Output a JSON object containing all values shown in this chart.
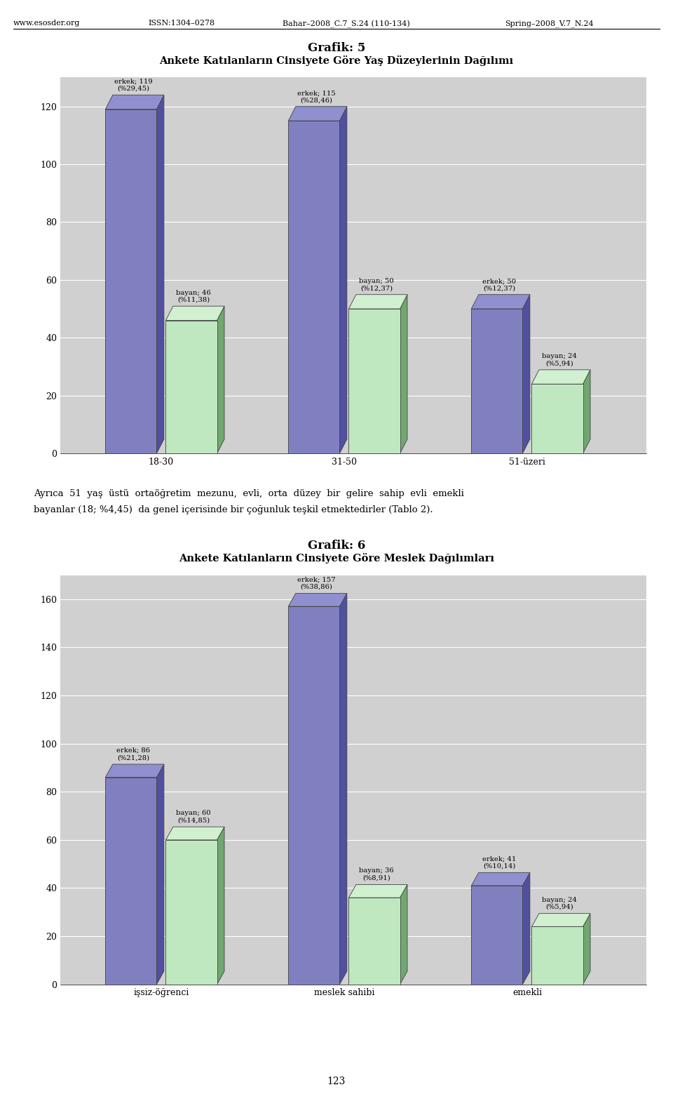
{
  "page_header_left": "www.esosder.org",
  "page_header_mid1": "ISSN:1304–0278",
  "page_header_mid2": "Bahar–2008_C.7_S.24 (110-134)",
  "page_header_right": "Spring–2008_V.7_N.24",
  "page_footer": "123",
  "chart1": {
    "title_line1": "Grafik: 5",
    "title_line2": "Ankete Katılanların Cinsiyete Göre Yaş Düzeylerinin Dağılımı",
    "categories": [
      "18-30",
      "31-50",
      "51-üzeri"
    ],
    "erkek_values": [
      119,
      115,
      50
    ],
    "bayan_values": [
      46,
      50,
      24
    ],
    "erkek_labels": [
      "erkek; 119\n(%29,45)",
      "erkek; 115\n(%28,46)",
      "erkek; 50\n(%12,37)"
    ],
    "bayan_labels": [
      "bayan; 46\n(%11,38)",
      "bayan; 50\n(%12,37)",
      "bayan; 24\n(%5,94)"
    ],
    "erkek_color": "#8080C0",
    "bayan_color": "#C0E8C0",
    "erkek_side": "#5050A0",
    "bayan_side": "#70A870",
    "erkek_top": "#9090D0",
    "bayan_top": "#D0F0D0",
    "edge_color": "#404040",
    "ylim": [
      0,
      130
    ],
    "yticks": [
      0,
      20,
      40,
      60,
      80,
      100,
      120
    ],
    "bg_color": "#D0D0D0",
    "grid_color": "#FFFFFF"
  },
  "paragraph_line1": "Ayrıca  51  yaş  üstü  ortaöğretim  mezunu,  evli,  orta  düzey  bir  gelire  sahip  evli  emekli",
  "paragraph_line2": "bayanlar (18; %4,45)  da genel içerisinde bir çoğunluk teşkil etmektedirler (Tablo 2).",
  "chart2": {
    "title_line1": "Grafik: 6",
    "title_line2": "Ankete Katılanların Cinsiyete Göre Meslek Dağılımları",
    "categories": [
      "işsiz-öğrenci",
      "meslek sahibi",
      "emekli"
    ],
    "erkek_values": [
      86,
      157,
      41
    ],
    "bayan_values": [
      60,
      36,
      24
    ],
    "erkek_labels": [
      "erkek; 86\n(%21,28)",
      "erkek; 157\n(%38,86)",
      "erkek; 41\n(%10,14)"
    ],
    "bayan_labels": [
      "bayan; 60\n(%14,85)",
      "bayan; 36\n(%8,91)",
      "bayan; 24\n(%5,94)"
    ],
    "erkek_color": "#8080C0",
    "bayan_color": "#C0E8C0",
    "erkek_side": "#5050A0",
    "bayan_side": "#70A870",
    "erkek_top": "#9090D0",
    "bayan_top": "#D0F0D0",
    "edge_color": "#404040",
    "ylim": [
      0,
      170
    ],
    "yticks": [
      0,
      20,
      40,
      60,
      80,
      100,
      120,
      140,
      160
    ],
    "bg_color": "#D0D0D0",
    "grid_color": "#FFFFFF"
  }
}
